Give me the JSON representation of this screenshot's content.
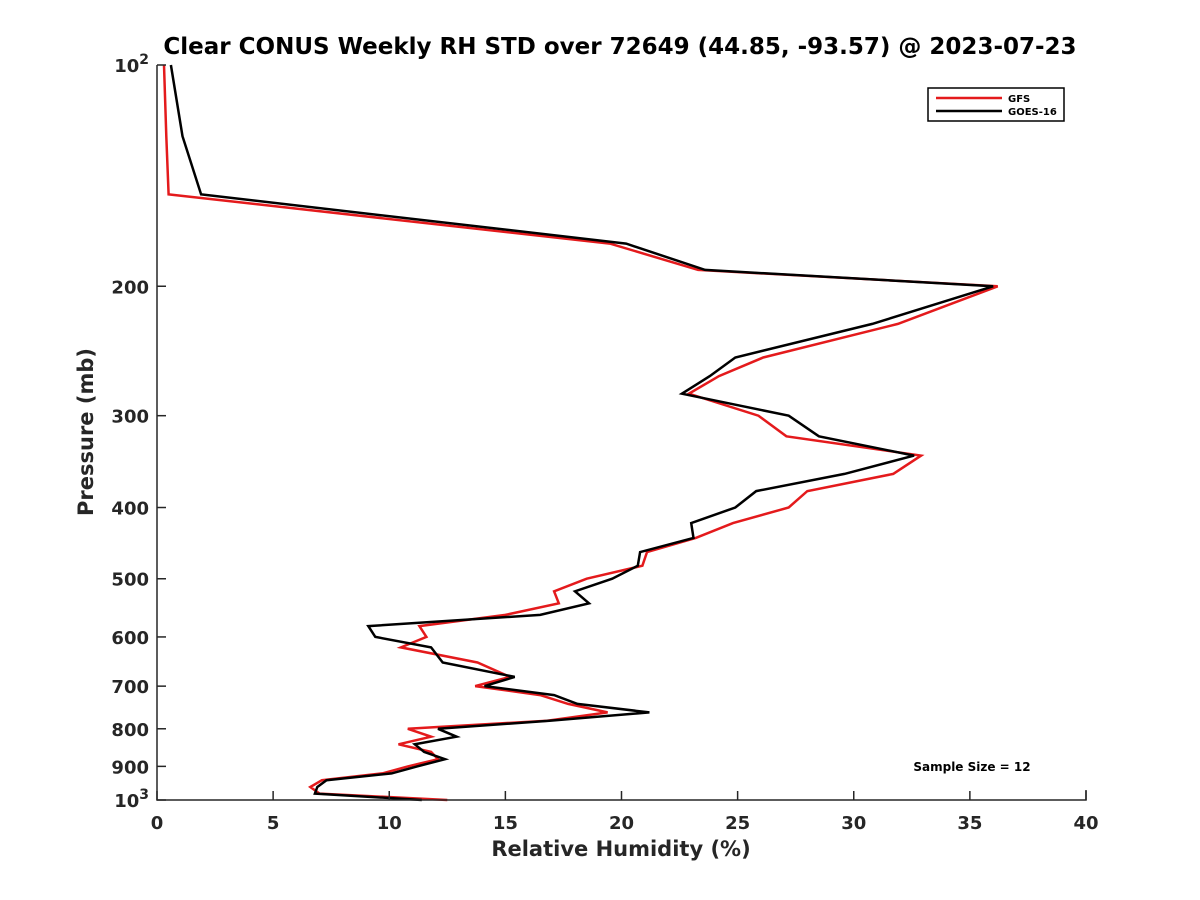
{
  "chart_data": {
    "type": "line",
    "title": "Clear CONUS Weekly RH STD over 72649 (44.85, -93.57) @ 2023-07-23",
    "xlabel": "Relative Humidity (%)",
    "ylabel": "Pressure (mb)",
    "xlim": [
      0,
      40
    ],
    "ylim": [
      100,
      1000
    ],
    "y_scale": "log",
    "y_reversed": true,
    "grid": false,
    "legend_position": "top-right",
    "x_ticks": [
      0,
      5,
      10,
      15,
      20,
      25,
      30,
      35,
      40
    ],
    "x_tick_labels": [
      "0",
      "5",
      "10",
      "15",
      "20",
      "25",
      "30",
      "35",
      "40"
    ],
    "y_ticks": [
      100,
      200,
      300,
      400,
      500,
      600,
      700,
      800,
      900,
      1000
    ],
    "y_tick_labels": [
      {
        "base": "10",
        "sup": "2"
      },
      {
        "base": "200",
        "sup": ""
      },
      {
        "base": "300",
        "sup": ""
      },
      {
        "base": "400",
        "sup": ""
      },
      {
        "base": "500",
        "sup": ""
      },
      {
        "base": "600",
        "sup": ""
      },
      {
        "base": "700",
        "sup": ""
      },
      {
        "base": "800",
        "sup": ""
      },
      {
        "base": "900",
        "sup": ""
      },
      {
        "base": "10",
        "sup": "3"
      }
    ],
    "annotation": "Sample Size = 12",
    "series": [
      {
        "name": "GFS",
        "color": "#e41a1c",
        "points": [
          [
            0.3,
            100
          ],
          [
            0.4,
            125
          ],
          [
            0.5,
            150
          ],
          [
            19.5,
            175
          ],
          [
            23.3,
            190
          ],
          [
            36.2,
            200
          ],
          [
            31.9,
            225
          ],
          [
            26.1,
            250
          ],
          [
            24.2,
            265
          ],
          [
            22.9,
            280
          ],
          [
            25.9,
            300
          ],
          [
            27.1,
            320
          ],
          [
            32.9,
            340
          ],
          [
            31.7,
            360
          ],
          [
            28.0,
            380
          ],
          [
            27.2,
            400
          ],
          [
            24.8,
            420
          ],
          [
            23.2,
            440
          ],
          [
            21.1,
            460
          ],
          [
            20.9,
            480
          ],
          [
            18.5,
            500
          ],
          [
            17.1,
            520
          ],
          [
            17.3,
            540
          ],
          [
            15.0,
            560
          ],
          [
            11.3,
            580
          ],
          [
            11.6,
            600
          ],
          [
            10.5,
            620
          ],
          [
            13.8,
            650
          ],
          [
            15.2,
            680
          ],
          [
            13.7,
            700
          ],
          [
            16.5,
            720
          ],
          [
            17.7,
            740
          ],
          [
            19.4,
            760
          ],
          [
            16.8,
            780
          ],
          [
            10.8,
            800
          ],
          [
            11.8,
            820
          ],
          [
            10.4,
            840
          ],
          [
            11.8,
            860
          ],
          [
            12.1,
            880
          ],
          [
            10.8,
            900
          ],
          [
            9.7,
            920
          ],
          [
            7.1,
            940
          ],
          [
            6.6,
            960
          ],
          [
            7.0,
            980
          ],
          [
            12.5,
            1000
          ]
        ]
      },
      {
        "name": "GOES-16",
        "color": "#000000",
        "points": [
          [
            0.6,
            100
          ],
          [
            1.1,
            125
          ],
          [
            1.9,
            150
          ],
          [
            20.2,
            175
          ],
          [
            23.6,
            190
          ],
          [
            36.0,
            200
          ],
          [
            30.8,
            225
          ],
          [
            24.9,
            250
          ],
          [
            23.8,
            265
          ],
          [
            22.6,
            280
          ],
          [
            27.2,
            300
          ],
          [
            28.5,
            320
          ],
          [
            32.6,
            340
          ],
          [
            29.6,
            360
          ],
          [
            25.8,
            380
          ],
          [
            24.9,
            400
          ],
          [
            23.0,
            420
          ],
          [
            23.1,
            440
          ],
          [
            20.8,
            460
          ],
          [
            20.7,
            480
          ],
          [
            19.6,
            500
          ],
          [
            18.0,
            520
          ],
          [
            18.6,
            540
          ],
          [
            16.5,
            560
          ],
          [
            9.1,
            580
          ],
          [
            9.4,
            600
          ],
          [
            11.8,
            620
          ],
          [
            12.3,
            650
          ],
          [
            15.4,
            680
          ],
          [
            14.1,
            700
          ],
          [
            17.1,
            720
          ],
          [
            18.1,
            740
          ],
          [
            21.2,
            760
          ],
          [
            16.9,
            780
          ],
          [
            12.1,
            800
          ],
          [
            12.9,
            820
          ],
          [
            11.1,
            840
          ],
          [
            11.5,
            860
          ],
          [
            12.4,
            880
          ],
          [
            11.2,
            900
          ],
          [
            10.1,
            920
          ],
          [
            7.3,
            940
          ],
          [
            6.9,
            960
          ],
          [
            6.8,
            980
          ],
          [
            11.4,
            1000
          ]
        ]
      }
    ]
  }
}
